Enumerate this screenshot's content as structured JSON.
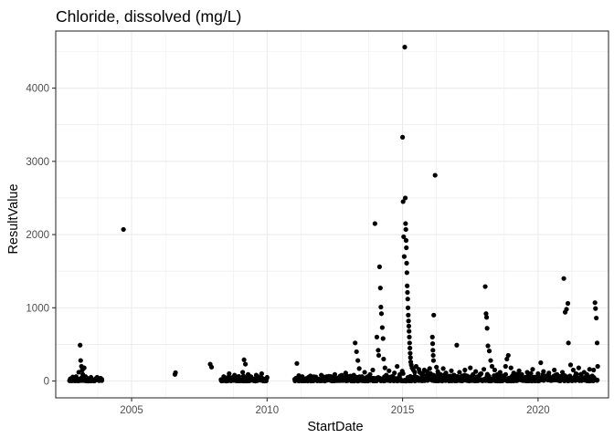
{
  "chart_data": {
    "type": "scatter",
    "title": "Chloride, dissolved (mg/L)",
    "xlabel": "StartDate",
    "ylabel": "ResultValue",
    "x_unit": "year",
    "xlim": [
      2002.2,
      2022.6
    ],
    "ylim": [
      -230,
      4780
    ],
    "x_ticks": [
      2005,
      2010,
      2015,
      2020
    ],
    "y_ticks": [
      0,
      1000,
      2000,
      3000,
      4000
    ],
    "grid": true,
    "legend": "none",
    "marker_color": "#000000",
    "panel_border_color": "#333333",
    "grid_color": "#ebebeb",
    "series": [
      {
        "points": [
          [
            2002.8,
            15
          ],
          [
            2002.85,
            40
          ],
          [
            2002.9,
            25
          ],
          [
            2002.95,
            60
          ],
          [
            2003.0,
            30
          ],
          [
            2003.05,
            120
          ],
          [
            2003.1,
            490
          ],
          [
            2003.12,
            280
          ],
          [
            2003.15,
            200
          ],
          [
            2003.18,
            150
          ],
          [
            2003.2,
            90
          ],
          [
            2003.25,
            180
          ],
          [
            2003.3,
            60
          ],
          [
            2003.35,
            40
          ],
          [
            2003.4,
            20
          ],
          [
            2003.5,
            50
          ],
          [
            2003.6,
            15
          ],
          [
            2003.7,
            35
          ],
          [
            2003.8,
            10
          ],
          [
            2003.9,
            25
          ],
          [
            2004.7,
            2070
          ],
          [
            2006.6,
            90
          ],
          [
            2006.62,
            115
          ],
          [
            2007.9,
            230
          ],
          [
            2007.95,
            190
          ],
          [
            2008.3,
            20
          ],
          [
            2008.4,
            60
          ],
          [
            2008.5,
            40
          ],
          [
            2008.6,
            100
          ],
          [
            2008.7,
            30
          ],
          [
            2008.8,
            80
          ],
          [
            2008.9,
            50
          ],
          [
            2009.0,
            20
          ],
          [
            2009.1,
            120
          ],
          [
            2009.15,
            290
          ],
          [
            2009.2,
            230
          ],
          [
            2009.3,
            90
          ],
          [
            2009.4,
            60
          ],
          [
            2009.5,
            30
          ],
          [
            2009.6,
            80
          ],
          [
            2009.7,
            40
          ],
          [
            2009.8,
            100
          ],
          [
            2009.9,
            20
          ],
          [
            2010.0,
            50
          ],
          [
            2011.1,
            240
          ],
          [
            2011.2,
            30
          ],
          [
            2011.3,
            60
          ],
          [
            2011.4,
            20
          ],
          [
            2011.5,
            40
          ],
          [
            2011.6,
            70
          ],
          [
            2011.7,
            15
          ],
          [
            2011.8,
            55
          ],
          [
            2011.9,
            25
          ],
          [
            2012.0,
            80
          ],
          [
            2012.1,
            30
          ],
          [
            2012.2,
            60
          ],
          [
            2012.3,
            20
          ],
          [
            2012.4,
            50
          ],
          [
            2012.5,
            90
          ],
          [
            2012.6,
            40
          ],
          [
            2012.7,
            70
          ],
          [
            2012.8,
            25
          ],
          [
            2012.9,
            110
          ],
          [
            2013.0,
            60
          ],
          [
            2013.1,
            35
          ],
          [
            2013.2,
            80
          ],
          [
            2013.25,
            520
          ],
          [
            2013.3,
            400
          ],
          [
            2013.35,
            280
          ],
          [
            2013.4,
            170
          ],
          [
            2013.5,
            60
          ],
          [
            2013.6,
            120
          ],
          [
            2013.7,
            40
          ],
          [
            2013.8,
            90
          ],
          [
            2013.9,
            150
          ],
          [
            2013.98,
            2150
          ],
          [
            2014.05,
            600
          ],
          [
            2014.1,
            420
          ],
          [
            2014.12,
            350
          ],
          [
            2014.15,
            1560
          ],
          [
            2014.18,
            1270
          ],
          [
            2014.2,
            1010
          ],
          [
            2014.22,
            920
          ],
          [
            2014.25,
            730
          ],
          [
            2014.28,
            580
          ],
          [
            2014.3,
            300
          ],
          [
            2014.35,
            180
          ],
          [
            2014.4,
            80
          ],
          [
            2014.5,
            140
          ],
          [
            2014.6,
            60
          ],
          [
            2014.7,
            110
          ],
          [
            2014.8,
            200
          ],
          [
            2014.9,
            90
          ],
          [
            2015.0,
            3330
          ],
          [
            2015.02,
            2450
          ],
          [
            2015.04,
            1970
          ],
          [
            2015.06,
            1700
          ],
          [
            2015.08,
            4560
          ],
          [
            2015.1,
            2500
          ],
          [
            2015.11,
            2150
          ],
          [
            2015.12,
            2070
          ],
          [
            2015.13,
            1920
          ],
          [
            2015.14,
            1820
          ],
          [
            2015.15,
            1610
          ],
          [
            2015.16,
            1480
          ],
          [
            2015.17,
            1300
          ],
          [
            2015.18,
            1210
          ],
          [
            2015.19,
            1120
          ],
          [
            2015.2,
            1000
          ],
          [
            2015.21,
            900
          ],
          [
            2015.22,
            820
          ],
          [
            2015.23,
            750
          ],
          [
            2015.24,
            680
          ],
          [
            2015.25,
            600
          ],
          [
            2015.26,
            520
          ],
          [
            2015.27,
            450
          ],
          [
            2015.28,
            380
          ],
          [
            2015.29,
            320
          ],
          [
            2015.3,
            260
          ],
          [
            2015.32,
            220
          ],
          [
            2015.35,
            180
          ],
          [
            2015.4,
            150
          ],
          [
            2015.45,
            120
          ],
          [
            2015.5,
            200
          ],
          [
            2015.6,
            160
          ],
          [
            2015.7,
            100
          ],
          [
            2015.8,
            150
          ],
          [
            2015.9,
            130
          ],
          [
            2016.0,
            170
          ],
          [
            2016.1,
            600
          ],
          [
            2016.11,
            510
          ],
          [
            2016.12,
            420
          ],
          [
            2016.13,
            350
          ],
          [
            2016.14,
            280
          ],
          [
            2016.15,
            900
          ],
          [
            2016.2,
            2810
          ],
          [
            2016.25,
            190
          ],
          [
            2016.3,
            130
          ],
          [
            2016.4,
            90
          ],
          [
            2016.5,
            170
          ],
          [
            2016.6,
            110
          ],
          [
            2016.7,
            60
          ],
          [
            2016.8,
            140
          ],
          [
            2016.9,
            80
          ],
          [
            2017.0,
            490
          ],
          [
            2017.1,
            120
          ],
          [
            2017.2,
            70
          ],
          [
            2017.3,
            150
          ],
          [
            2017.4,
            40
          ],
          [
            2017.5,
            180
          ],
          [
            2017.6,
            90
          ],
          [
            2017.7,
            130
          ],
          [
            2017.8,
            60
          ],
          [
            2017.9,
            100
          ],
          [
            2018.0,
            160
          ],
          [
            2018.05,
            1290
          ],
          [
            2018.08,
            920
          ],
          [
            2018.1,
            870
          ],
          [
            2018.12,
            720
          ],
          [
            2018.15,
            480
          ],
          [
            2018.2,
            410
          ],
          [
            2018.25,
            280
          ],
          [
            2018.3,
            200
          ],
          [
            2018.4,
            150
          ],
          [
            2018.5,
            90
          ],
          [
            2018.6,
            120
          ],
          [
            2018.7,
            70
          ],
          [
            2018.8,
            200
          ],
          [
            2018.85,
            300
          ],
          [
            2018.9,
            350
          ],
          [
            2019.0,
            180
          ],
          [
            2019.1,
            110
          ],
          [
            2019.2,
            60
          ],
          [
            2019.3,
            140
          ],
          [
            2019.4,
            90
          ],
          [
            2019.5,
            40
          ],
          [
            2019.6,
            120
          ],
          [
            2019.7,
            80
          ],
          [
            2019.8,
            160
          ],
          [
            2019.9,
            50
          ],
          [
            2020.0,
            100
          ],
          [
            2020.1,
            250
          ],
          [
            2020.2,
            130
          ],
          [
            2020.3,
            70
          ],
          [
            2020.4,
            110
          ],
          [
            2020.5,
            40
          ],
          [
            2020.6,
            150
          ],
          [
            2020.7,
            90
          ],
          [
            2020.8,
            60
          ],
          [
            2020.9,
            120
          ],
          [
            2020.95,
            1400
          ],
          [
            2021.0,
            940
          ],
          [
            2021.05,
            980
          ],
          [
            2021.1,
            1060
          ],
          [
            2021.12,
            520
          ],
          [
            2021.2,
            220
          ],
          [
            2021.3,
            150
          ],
          [
            2021.4,
            100
          ],
          [
            2021.5,
            180
          ],
          [
            2021.6,
            60
          ],
          [
            2021.7,
            120
          ],
          [
            2021.8,
            90
          ],
          [
            2021.9,
            160
          ],
          [
            2022.0,
            70
          ],
          [
            2022.05,
            150
          ],
          [
            2022.1,
            1070
          ],
          [
            2022.12,
            990
          ],
          [
            2022.15,
            860
          ],
          [
            2022.18,
            520
          ],
          [
            2022.2,
            200
          ]
        ]
      }
    ],
    "dense_bands": [
      {
        "x_from": 2002.7,
        "x_to": 2003.9,
        "y_from": 0,
        "y_to": 60
      },
      {
        "x_from": 2008.3,
        "x_to": 2010.0,
        "y_from": 0,
        "y_to": 80
      },
      {
        "x_from": 2011.0,
        "x_to": 2014.8,
        "y_from": 0,
        "y_to": 90
      },
      {
        "x_from": 2014.8,
        "x_to": 2016.6,
        "y_from": 0,
        "y_to": 150
      },
      {
        "x_from": 2016.6,
        "x_to": 2022.2,
        "y_from": 0,
        "y_to": 110
      }
    ]
  }
}
